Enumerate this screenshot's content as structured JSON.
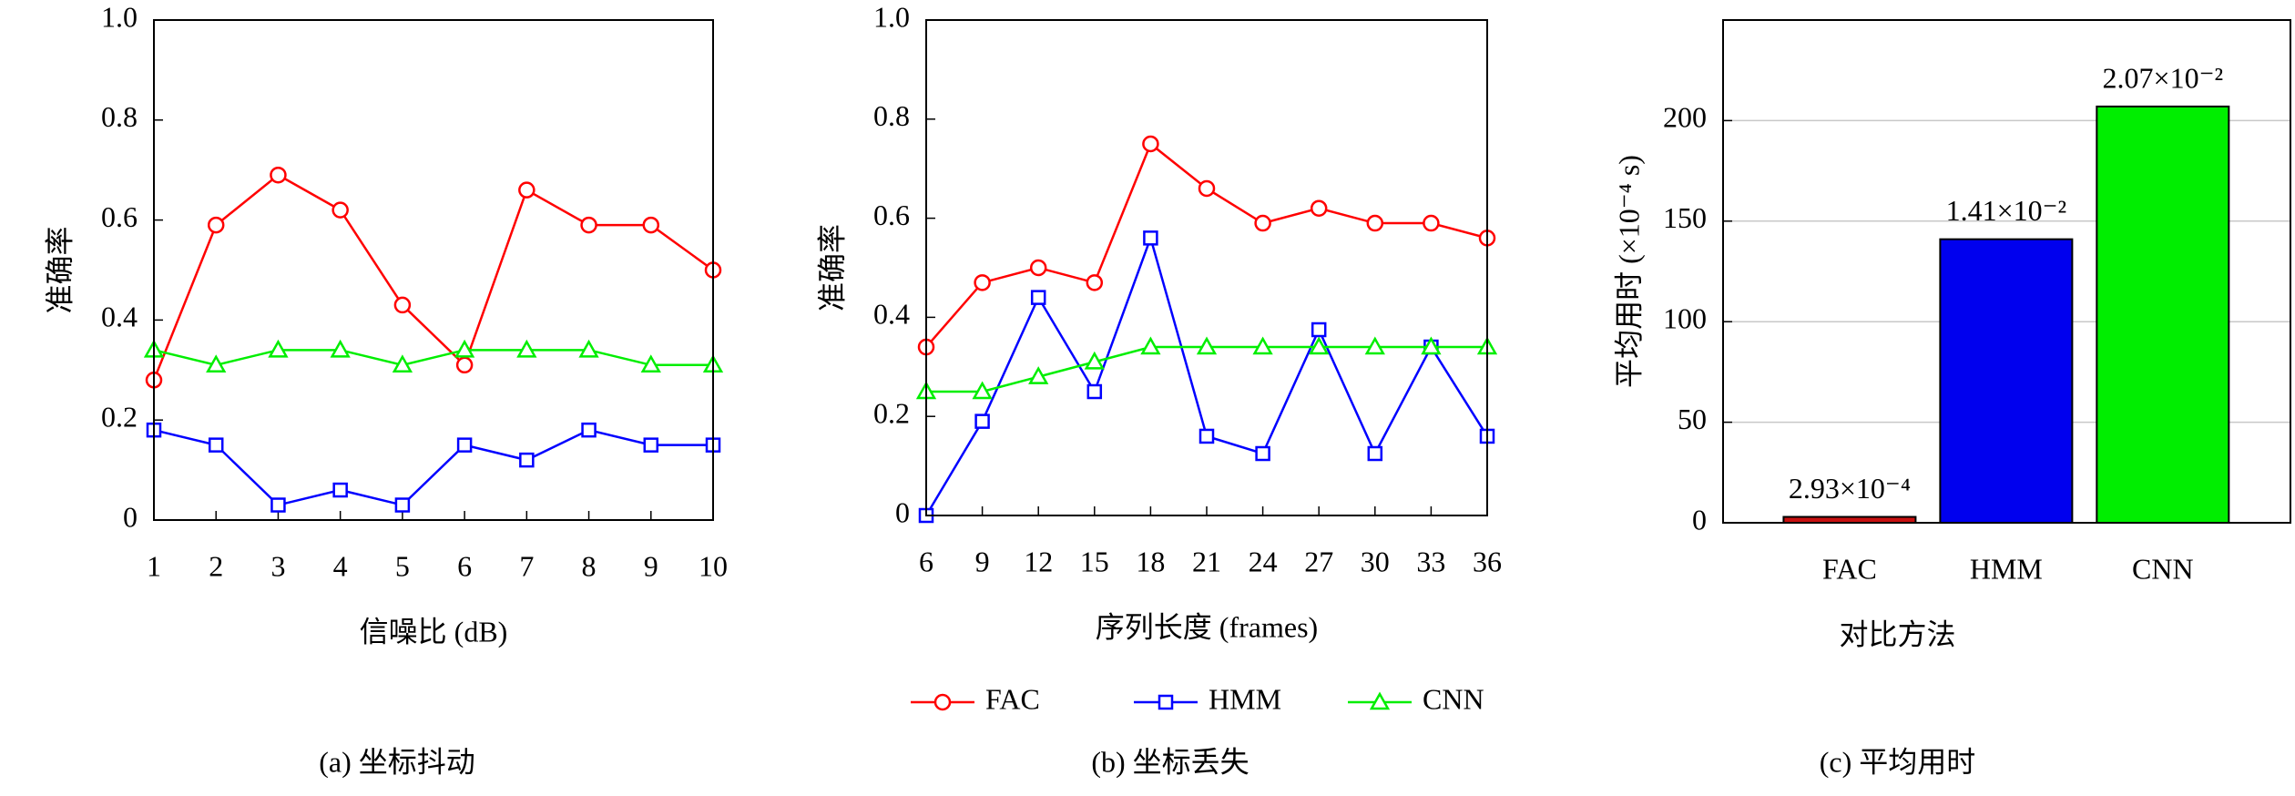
{
  "chart_data": [
    {
      "type": "line",
      "xlabel": "信噪比 (dB)",
      "ylabel": "准确率",
      "caption": "(a) 坐标抖动",
      "x": [
        1,
        2,
        3,
        4,
        5,
        6,
        7,
        8,
        9,
        10
      ],
      "xlim": [
        1,
        10
      ],
      "xticks": [
        1,
        2,
        3,
        4,
        5,
        6,
        7,
        8,
        9,
        10
      ],
      "ylim": [
        0,
        1
      ],
      "yticks": [
        0,
        0.2,
        0.4,
        0.6,
        0.8,
        {
          "value": 1,
          "label": "1.0"
        }
      ],
      "series": [
        {
          "name": "FAC",
          "color": "#ff0000",
          "marker": "circle",
          "values": [
            0.28,
            0.59,
            0.69,
            0.62,
            0.43,
            0.31,
            0.66,
            0.59,
            0.59,
            0.5
          ]
        },
        {
          "name": "HMM",
          "color": "#0000ff",
          "marker": "square",
          "values": [
            0.18,
            0.15,
            0.03,
            0.06,
            0.03,
            0.15,
            0.12,
            0.18,
            0.15,
            0.15
          ]
        },
        {
          "name": "CNN",
          "color": "#00ee00",
          "marker": "triangle",
          "values": [
            0.34,
            0.31,
            0.34,
            0.34,
            0.31,
            0.34,
            0.34,
            0.34,
            0.31,
            0.31
          ]
        }
      ]
    },
    {
      "type": "line",
      "xlabel": "序列长度 (frames)",
      "ylabel": "准确率",
      "caption": "(b) 坐标丢失",
      "x": [
        6,
        9,
        12,
        15,
        18,
        21,
        24,
        27,
        30,
        33,
        36
      ],
      "xlim": [
        6,
        36
      ],
      "xticks": [
        6,
        9,
        12,
        15,
        18,
        21,
        24,
        27,
        30,
        33,
        36
      ],
      "ylim": [
        0,
        1
      ],
      "yticks": [
        0,
        0.2,
        0.4,
        0.6,
        0.8,
        {
          "value": 1,
          "label": "1.0"
        }
      ],
      "series": [
        {
          "name": "FAC",
          "color": "#ff0000",
          "marker": "circle",
          "values": [
            0.34,
            0.47,
            0.5,
            0.47,
            0.75,
            0.66,
            0.59,
            0.62,
            0.59,
            0.59,
            0.56
          ]
        },
        {
          "name": "HMM",
          "color": "#0000ff",
          "marker": "square",
          "values": [
            0,
            0.19,
            0.44,
            0.25,
            0.56,
            0.16,
            0.125,
            0.375,
            0.125,
            0.34,
            0.16
          ]
        },
        {
          "name": "CNN",
          "color": "#00ee00",
          "marker": "triangle",
          "values": [
            0.25,
            0.25,
            0.28,
            0.31,
            0.34,
            0.34,
            0.34,
            0.34,
            0.34,
            0.34,
            0.34
          ]
        }
      ]
    },
    {
      "type": "bar",
      "xlabel": "对比方法",
      "ylabel": "平均用时 (×10⁻⁴ s)",
      "caption": "(c) 平均用时",
      "categories": [
        "FAC",
        "HMM",
        "CNN"
      ],
      "values": [
        2.93,
        141,
        207
      ],
      "value_labels": [
        "2.93×10⁻⁴",
        "1.41×10⁻²",
        "2.07×10⁻²"
      ],
      "colors": [
        "#c81010",
        "#0000ee",
        "#00ee00"
      ],
      "ylim": [
        0,
        250
      ],
      "yticks": [
        0,
        50,
        100,
        150,
        200
      ],
      "grid": true
    }
  ]
}
